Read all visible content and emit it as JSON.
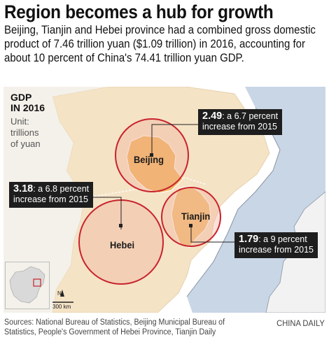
{
  "headline": "Region becomes a hub for growth",
  "dek": "Beijing, Tianjin and Hebei province had a combined gross domestic product of 7.46 trillion yuan ($1.09 trillion) in 2016, accounting for about 10 percent of China's 74.41 trillion yuan GDP.",
  "legend": {
    "title_line1": "GDP",
    "title_line2": "IN 2016",
    "unit_line1": "Unit:",
    "unit_line2": "trillions",
    "unit_line3": "of yuan"
  },
  "regions": [
    {
      "name": "Beijing",
      "gdp": "2.49",
      "note_line1": ": a 6.7 percent",
      "note_line2": "increase from 2015"
    },
    {
      "name": "Hebei",
      "gdp": "3.18",
      "note_line1": ": a 6.8 percent",
      "note_line2": "increase from 2015"
    },
    {
      "name": "Tianjin",
      "gdp": "1.79",
      "note_line1": ": a 9 percent",
      "note_line2": "increase from 2015"
    }
  ],
  "scale": {
    "north": "N",
    "distance": "300 km"
  },
  "colors": {
    "land": "#f5e3c6",
    "sea": "#c9d6e6",
    "beijing": "#f2b866",
    "tianjin": "#f1c27a",
    "circle": "#c8232c",
    "callout_bg": "#1e1e1e"
  },
  "footer": {
    "sources": "Sources: National Bureau of Statistics, Beijing Municipal Bureau of Statistics, People's Government of Hebei Province, Tianjin Daily",
    "credit": "CHINA DAILY"
  }
}
